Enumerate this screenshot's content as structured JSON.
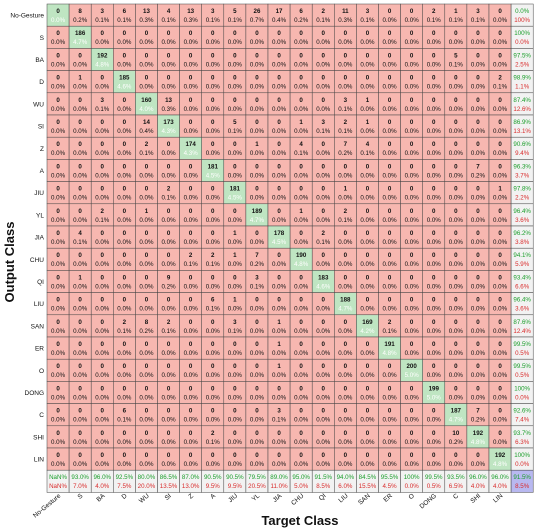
{
  "chart_data": {
    "type": "heatmap",
    "xlabel": "Target Class",
    "ylabel": "Output Class",
    "classes": [
      "No-Gesture",
      "S",
      "BA",
      "D",
      "WU",
      "SI",
      "Z",
      "A",
      "JIU",
      "YL",
      "JIA",
      "CHU",
      "QI",
      "LIU",
      "SAN",
      "ER",
      "O",
      "DONG",
      "C",
      "SHI",
      "LIN"
    ],
    "counts": [
      [
        0,
        8,
        3,
        6,
        13,
        4,
        13,
        3,
        5,
        26,
        17,
        6,
        2,
        11,
        3,
        0,
        0,
        2,
        1,
        3,
        0
      ],
      [
        0,
        186,
        0,
        0,
        0,
        0,
        0,
        0,
        0,
        0,
        0,
        0,
        0,
        0,
        0,
        0,
        0,
        0,
        0,
        0,
        0
      ],
      [
        0,
        0,
        192,
        0,
        0,
        0,
        0,
        0,
        0,
        0,
        0,
        0,
        0,
        0,
        0,
        0,
        0,
        0,
        5,
        0,
        0
      ],
      [
        0,
        1,
        0,
        185,
        0,
        0,
        0,
        0,
        0,
        0,
        0,
        0,
        0,
        0,
        0,
        0,
        0,
        0,
        0,
        0,
        2
      ],
      [
        0,
        0,
        3,
        0,
        160,
        13,
        0,
        0,
        0,
        0,
        0,
        0,
        0,
        3,
        1,
        0,
        0,
        0,
        0,
        0,
        0
      ],
      [
        0,
        0,
        0,
        0,
        14,
        173,
        0,
        0,
        5,
        0,
        0,
        1,
        3,
        2,
        1,
        0,
        0,
        0,
        0,
        0,
        0
      ],
      [
        0,
        0,
        0,
        0,
        2,
        0,
        174,
        0,
        0,
        1,
        0,
        4,
        0,
        7,
        4,
        0,
        0,
        0,
        0,
        0,
        0
      ],
      [
        0,
        0,
        0,
        0,
        0,
        0,
        0,
        181,
        0,
        0,
        0,
        0,
        0,
        0,
        0,
        0,
        0,
        0,
        0,
        7,
        0
      ],
      [
        0,
        0,
        0,
        0,
        0,
        2,
        0,
        0,
        181,
        0,
        0,
        0,
        0,
        1,
        0,
        0,
        0,
        0,
        0,
        0,
        1
      ],
      [
        0,
        0,
        2,
        0,
        1,
        0,
        0,
        0,
        0,
        189,
        0,
        1,
        0,
        2,
        0,
        0,
        0,
        0,
        0,
        0,
        0
      ],
      [
        0,
        4,
        0,
        0,
        0,
        0,
        0,
        0,
        1,
        0,
        178,
        0,
        2,
        0,
        0,
        0,
        0,
        0,
        0,
        0,
        0
      ],
      [
        0,
        0,
        0,
        0,
        0,
        0,
        2,
        2,
        1,
        7,
        0,
        190,
        0,
        0,
        0,
        0,
        0,
        0,
        0,
        0,
        0
      ],
      [
        0,
        1,
        0,
        0,
        0,
        9,
        0,
        0,
        0,
        3,
        0,
        0,
        183,
        0,
        0,
        0,
        0,
        0,
        0,
        0,
        0
      ],
      [
        0,
        0,
        0,
        0,
        0,
        0,
        0,
        6,
        1,
        0,
        0,
        0,
        0,
        188,
        0,
        0,
        0,
        0,
        0,
        0,
        0
      ],
      [
        0,
        0,
        0,
        2,
        8,
        2,
        0,
        0,
        3,
        0,
        1,
        0,
        0,
        0,
        169,
        2,
        0,
        0,
        0,
        0,
        0
      ],
      [
        0,
        0,
        0,
        0,
        0,
        0,
        0,
        0,
        0,
        0,
        1,
        0,
        0,
        0,
        0,
        191,
        0,
        0,
        0,
        0,
        0
      ],
      [
        0,
        0,
        0,
        0,
        0,
        0,
        0,
        0,
        0,
        0,
        1,
        0,
        0,
        0,
        0,
        0,
        200,
        0,
        0,
        0,
        0
      ],
      [
        0,
        0,
        0,
        0,
        0,
        0,
        0,
        0,
        0,
        0,
        0,
        0,
        0,
        0,
        0,
        0,
        0,
        199,
        0,
        0,
        0
      ],
      [
        0,
        0,
        0,
        6,
        0,
        0,
        0,
        0,
        0,
        0,
        3,
        0,
        0,
        0,
        0,
        0,
        0,
        0,
        187,
        7,
        0
      ],
      [
        0,
        0,
        0,
        0,
        0,
        0,
        0,
        2,
        0,
        0,
        0,
        0,
        0,
        0,
        0,
        0,
        0,
        0,
        10,
        192,
        0
      ],
      [
        0,
        0,
        0,
        0,
        0,
        0,
        0,
        0,
        0,
        0,
        0,
        0,
        0,
        0,
        0,
        0,
        0,
        0,
        0,
        0,
        192
      ]
    ],
    "percents": [
      [
        "0.0%",
        "0.2%",
        "0.1%",
        "0.1%",
        "0.3%",
        "0.1%",
        "0.3%",
        "0.1%",
        "0.1%",
        "0.7%",
        "0.4%",
        "0.2%",
        "0.1%",
        "0.3%",
        "0.1%",
        "0.0%",
        "0.0%",
        "0.1%",
        "0.1%",
        "0.1%",
        "0.0%"
      ],
      [
        "0.0%",
        "4.7%",
        "0.0%",
        "0.0%",
        "0.0%",
        "0.0%",
        "0.0%",
        "0.0%",
        "0.0%",
        "0.0%",
        "0.0%",
        "0.0%",
        "0.0%",
        "0.0%",
        "0.0%",
        "0.0%",
        "0.0%",
        "0.0%",
        "0.0%",
        "0.0%",
        "0.0%"
      ],
      [
        "0.0%",
        "0.0%",
        "4.8%",
        "0.0%",
        "0.0%",
        "0.0%",
        "0.0%",
        "0.0%",
        "0.0%",
        "0.0%",
        "0.0%",
        "0.0%",
        "0.0%",
        "0.0%",
        "0.0%",
        "0.0%",
        "0.0%",
        "0.0%",
        "0.1%",
        "0.0%",
        "0.0%"
      ],
      [
        "0.0%",
        "0.0%",
        "0.0%",
        "4.6%",
        "0.0%",
        "0.0%",
        "0.0%",
        "0.0%",
        "0.0%",
        "0.0%",
        "0.0%",
        "0.0%",
        "0.0%",
        "0.0%",
        "0.0%",
        "0.0%",
        "0.0%",
        "0.0%",
        "0.0%",
        "0.0%",
        "0.1%"
      ],
      [
        "0.0%",
        "0.0%",
        "0.1%",
        "0.0%",
        "4.0%",
        "0.3%",
        "0.0%",
        "0.0%",
        "0.0%",
        "0.0%",
        "0.0%",
        "0.0%",
        "0.0%",
        "0.1%",
        "0.0%",
        "0.0%",
        "0.0%",
        "0.0%",
        "0.0%",
        "0.0%",
        "0.0%"
      ],
      [
        "0.0%",
        "0.0%",
        "0.0%",
        "0.0%",
        "0.4%",
        "4.3%",
        "0.0%",
        "0.0%",
        "0.1%",
        "0.0%",
        "0.0%",
        "0.0%",
        "0.1%",
        "0.1%",
        "0.0%",
        "0.0%",
        "0.0%",
        "0.0%",
        "0.0%",
        "0.0%",
        "0.0%"
      ],
      [
        "0.0%",
        "0.0%",
        "0.0%",
        "0.0%",
        "0.1%",
        "0.0%",
        "4.3%",
        "0.0%",
        "0.0%",
        "0.0%",
        "0.0%",
        "0.1%",
        "0.0%",
        "0.2%",
        "0.1%",
        "0.0%",
        "0.0%",
        "0.0%",
        "0.0%",
        "0.0%",
        "0.0%"
      ],
      [
        "0.0%",
        "0.0%",
        "0.0%",
        "0.0%",
        "0.0%",
        "0.0%",
        "0.0%",
        "4.5%",
        "0.0%",
        "0.0%",
        "0.0%",
        "0.0%",
        "0.0%",
        "0.0%",
        "0.0%",
        "0.0%",
        "0.0%",
        "0.0%",
        "0.0%",
        "0.2%",
        "0.0%"
      ],
      [
        "0.0%",
        "0.0%",
        "0.0%",
        "0.0%",
        "0.0%",
        "0.1%",
        "0.0%",
        "0.0%",
        "4.5%",
        "0.0%",
        "0.0%",
        "0.0%",
        "0.0%",
        "0.0%",
        "0.0%",
        "0.0%",
        "0.0%",
        "0.0%",
        "0.0%",
        "0.0%",
        "0.0%"
      ],
      [
        "0.0%",
        "0.0%",
        "0.1%",
        "0.0%",
        "0.0%",
        "0.0%",
        "0.0%",
        "0.0%",
        "0.0%",
        "4.7%",
        "0.0%",
        "0.0%",
        "0.0%",
        "0.1%",
        "0.0%",
        "0.0%",
        "0.0%",
        "0.0%",
        "0.0%",
        "0.0%",
        "0.0%"
      ],
      [
        "0.0%",
        "0.1%",
        "0.0%",
        "0.0%",
        "0.0%",
        "0.0%",
        "0.0%",
        "0.0%",
        "0.0%",
        "0.0%",
        "4.5%",
        "0.0%",
        "0.1%",
        "0.0%",
        "0.0%",
        "0.0%",
        "0.0%",
        "0.0%",
        "0.0%",
        "0.0%",
        "0.0%"
      ],
      [
        "0.0%",
        "0.0%",
        "0.0%",
        "0.0%",
        "0.0%",
        "0.0%",
        "0.1%",
        "0.1%",
        "0.0%",
        "0.2%",
        "0.0%",
        "4.8%",
        "0.0%",
        "0.0%",
        "0.0%",
        "0.0%",
        "0.0%",
        "0.0%",
        "0.0%",
        "0.0%",
        "0.0%"
      ],
      [
        "0.0%",
        "0.0%",
        "0.0%",
        "0.0%",
        "0.0%",
        "0.2%",
        "0.0%",
        "0.0%",
        "0.0%",
        "0.1%",
        "0.0%",
        "0.0%",
        "4.6%",
        "0.0%",
        "0.0%",
        "0.0%",
        "0.0%",
        "0.0%",
        "0.0%",
        "0.0%",
        "0.0%"
      ],
      [
        "0.0%",
        "0.0%",
        "0.0%",
        "0.0%",
        "0.0%",
        "0.0%",
        "0.0%",
        "0.1%",
        "0.0%",
        "0.0%",
        "0.0%",
        "0.0%",
        "0.0%",
        "4.7%",
        "0.0%",
        "0.0%",
        "0.0%",
        "0.0%",
        "0.0%",
        "0.0%",
        "0.0%"
      ],
      [
        "0.0%",
        "0.0%",
        "0.0%",
        "0.1%",
        "0.2%",
        "0.1%",
        "0.0%",
        "0.0%",
        "0.1%",
        "0.0%",
        "0.0%",
        "0.0%",
        "0.0%",
        "0.0%",
        "4.2%",
        "0.1%",
        "0.0%",
        "0.0%",
        "0.0%",
        "0.0%",
        "0.0%"
      ],
      [
        "0.0%",
        "0.0%",
        "0.0%",
        "0.0%",
        "0.0%",
        "0.0%",
        "0.0%",
        "0.0%",
        "0.0%",
        "0.0%",
        "0.0%",
        "0.0%",
        "0.0%",
        "0.0%",
        "0.0%",
        "4.8%",
        "0.0%",
        "0.0%",
        "0.0%",
        "0.0%",
        "0.0%"
      ],
      [
        "0.0%",
        "0.0%",
        "0.0%",
        "0.0%",
        "0.0%",
        "0.0%",
        "0.0%",
        "0.0%",
        "0.0%",
        "0.0%",
        "0.0%",
        "0.0%",
        "0.0%",
        "0.0%",
        "0.0%",
        "0.0%",
        "5.0%",
        "0.0%",
        "0.0%",
        "0.0%",
        "0.0%"
      ],
      [
        "0.0%",
        "0.0%",
        "0.0%",
        "0.0%",
        "0.0%",
        "0.0%",
        "0.0%",
        "0.0%",
        "0.0%",
        "0.0%",
        "0.0%",
        "0.0%",
        "0.0%",
        "0.0%",
        "0.0%",
        "0.0%",
        "0.0%",
        "5.0%",
        "0.0%",
        "0.0%",
        "0.0%"
      ],
      [
        "0.0%",
        "0.0%",
        "0.0%",
        "0.1%",
        "0.0%",
        "0.0%",
        "0.0%",
        "0.0%",
        "0.0%",
        "0.0%",
        "0.1%",
        "0.0%",
        "0.0%",
        "0.0%",
        "0.0%",
        "0.0%",
        "0.0%",
        "0.0%",
        "4.7%",
        "0.2%",
        "0.0%"
      ],
      [
        "0.0%",
        "0.0%",
        "0.0%",
        "0.0%",
        "0.0%",
        "0.0%",
        "0.0%",
        "0.1%",
        "0.0%",
        "0.0%",
        "0.0%",
        "0.0%",
        "0.0%",
        "0.0%",
        "0.0%",
        "0.0%",
        "0.0%",
        "0.0%",
        "0.2%",
        "4.8%",
        "0.0%"
      ],
      [
        "0.0%",
        "0.0%",
        "0.0%",
        "0.0%",
        "0.0%",
        "0.0%",
        "0.0%",
        "0.0%",
        "0.0%",
        "0.0%",
        "0.0%",
        "0.0%",
        "0.0%",
        "0.0%",
        "0.0%",
        "0.0%",
        "0.0%",
        "0.0%",
        "0.0%",
        "0.0%",
        "4.8%"
      ]
    ],
    "row_summary": [
      [
        "0.0%",
        "100%"
      ],
      [
        "100%",
        "0.0%"
      ],
      [
        "97.5%",
        "2.5%"
      ],
      [
        "98.9%",
        "1.1%"
      ],
      [
        "87.4%",
        "12.6%"
      ],
      [
        "86.9%",
        "13.1%"
      ],
      [
        "90.6%",
        "9.4%"
      ],
      [
        "96.3%",
        "3.7%"
      ],
      [
        "97.8%",
        "2.2%"
      ],
      [
        "96.4%",
        "3.6%"
      ],
      [
        "96.2%",
        "3.8%"
      ],
      [
        "94.1%",
        "5.9%"
      ],
      [
        "93.4%",
        "6.6%"
      ],
      [
        "96.4%",
        "3.6%"
      ],
      [
        "87.6%",
        "12.4%"
      ],
      [
        "99.5%",
        "0.5%"
      ],
      [
        "99.5%",
        "0.5%"
      ],
      [
        "100%",
        "0.0%"
      ],
      [
        "92.6%",
        "7.4%"
      ],
      [
        "93.7%",
        "6.3%"
      ],
      [
        "100%",
        "0.0%"
      ]
    ],
    "col_summary": [
      [
        "NaN%",
        "NaN%"
      ],
      [
        "93.0%",
        "7.0%"
      ],
      [
        "96.0%",
        "4.0%"
      ],
      [
        "92.5%",
        "7.5%"
      ],
      [
        "80.0%",
        "20.0%"
      ],
      [
        "86.5%",
        "13.5%"
      ],
      [
        "87.0%",
        "13.0%"
      ],
      [
        "90.5%",
        "9.5%"
      ],
      [
        "90.5%",
        "9.5%"
      ],
      [
        "79.5%",
        "20.5%"
      ],
      [
        "89.0%",
        "11.0%"
      ],
      [
        "95.0%",
        "5.0%"
      ],
      [
        "91.5%",
        "8.5%"
      ],
      [
        "94.0%",
        "6.0%"
      ],
      [
        "84.5%",
        "15.5%"
      ],
      [
        "95.5%",
        "4.5%"
      ],
      [
        "100%",
        "0.0%"
      ],
      [
        "99.5%",
        "0.5%"
      ],
      [
        "93.5%",
        "6.5%"
      ],
      [
        "96.0%",
        "4.0%"
      ],
      [
        "96.0%",
        "4.0%"
      ]
    ],
    "overall": [
      "91.5%",
      "8.5%"
    ],
    "colors": {
      "correct_cell": "#bfe5c2",
      "error_cell": "#f7b7b0",
      "summary_cell": "#f2f2f2",
      "overall_cell": "#b8b8f0",
      "accuracy_text": "#1a9e2a",
      "error_text": "#d92b2b",
      "diag_percent_text": "#ffffff",
      "text": "#111111",
      "grid_line": "#444444"
    }
  }
}
